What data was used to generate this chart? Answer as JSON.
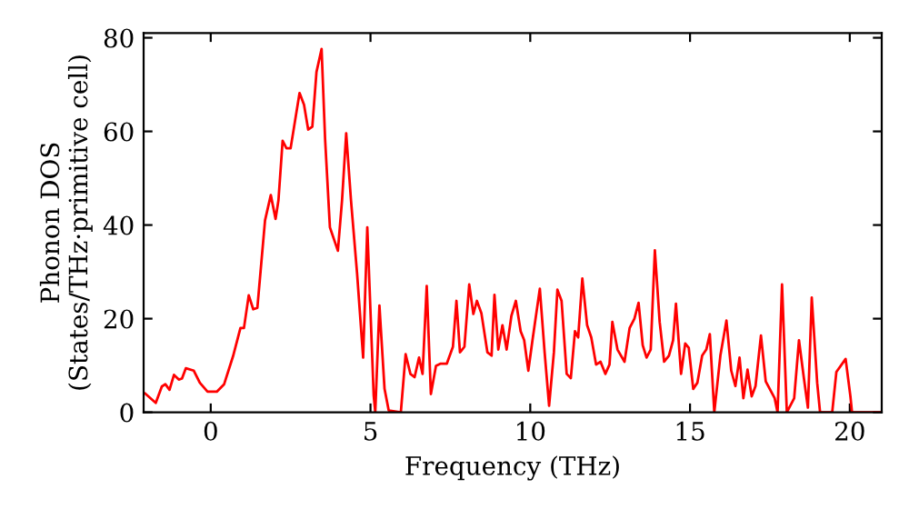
{
  "chart_data": {
    "type": "line",
    "xlabel": "Frequency (THz)",
    "ylabel": "Phonon DOS\n(States/THz·primitive cell)",
    "xlim": [
      -2.1,
      21
    ],
    "ylim": [
      0,
      81
    ],
    "xticks": [
      0,
      5,
      10,
      15,
      20
    ],
    "yticks": [
      0,
      20,
      40,
      60,
      80
    ],
    "grid": false,
    "legend": false,
    "marker": "none",
    "line_style": "solid",
    "series": [
      {
        "color": "#ff0000",
        "x": [
          -2.05,
          -1.72,
          -1.53,
          -1.42,
          -1.29,
          -1.15,
          -1.0,
          -0.9,
          -0.78,
          -0.53,
          -0.34,
          -0.1,
          0.19,
          0.42,
          0.7,
          0.93,
          1.04,
          1.19,
          1.33,
          1.46,
          1.7,
          1.88,
          2.03,
          2.12,
          2.25,
          2.37,
          2.5,
          2.78,
          2.92,
          3.05,
          3.18,
          3.31,
          3.47,
          3.58,
          3.73,
          3.98,
          4.11,
          4.24,
          4.39,
          4.58,
          4.77,
          4.9,
          5.1,
          5.15,
          5.28,
          5.44,
          5.57,
          5.95,
          6.1,
          6.25,
          6.38,
          6.52,
          6.63,
          6.76,
          6.89,
          7.05,
          7.2,
          7.39,
          7.58,
          7.69,
          7.8,
          7.94,
          8.09,
          8.22,
          8.33,
          8.47,
          8.66,
          8.79,
          8.88,
          9.0,
          9.13,
          9.26,
          9.41,
          9.55,
          9.7,
          9.81,
          9.94,
          10.07,
          10.3,
          10.45,
          10.59,
          10.74,
          10.85,
          10.98,
          11.14,
          11.27,
          11.4,
          11.5,
          11.63,
          11.78,
          11.91,
          12.06,
          12.2,
          12.35,
          12.48,
          12.57,
          12.73,
          12.95,
          13.11,
          13.26,
          13.39,
          13.52,
          13.64,
          13.77,
          13.9,
          14.05,
          14.19,
          14.34,
          14.47,
          14.56,
          14.72,
          14.85,
          14.96,
          15.1,
          15.23,
          15.38,
          15.51,
          15.62,
          15.76,
          15.95,
          16.14,
          16.29,
          16.42,
          16.55,
          16.67,
          16.8,
          16.93,
          17.05,
          17.22,
          17.37,
          17.65,
          17.74,
          17.88,
          18.03,
          18.26,
          18.41,
          18.56,
          18.69,
          18.81,
          18.98,
          19.07,
          19.45,
          19.58,
          19.87,
          20.02,
          20.07,
          21
        ],
        "values": [
          4,
          2,
          5.5,
          6,
          4.8,
          8,
          7,
          7.2,
          9.4,
          8.9,
          6.3,
          4.4,
          4.4,
          6,
          12,
          18,
          18,
          25,
          22,
          22.3,
          41,
          46.4,
          41.3,
          45.3,
          58,
          56.4,
          56.4,
          68.2,
          65.7,
          60.4,
          61,
          72.7,
          77.6,
          58.3,
          39.5,
          34.5,
          45.3,
          59.6,
          45.3,
          29.7,
          11.7,
          39.5,
          3.6,
          0,
          22.8,
          5,
          0.4,
          0,
          12.4,
          8.2,
          7.5,
          11.7,
          8.2,
          27,
          3.9,
          9.9,
          10.4,
          10.4,
          14,
          23.8,
          12.8,
          14,
          27.3,
          21,
          23.8,
          21.2,
          12.8,
          12.1,
          25.1,
          13.4,
          18.6,
          13.4,
          20.6,
          23.8,
          17.3,
          15.4,
          8.9,
          15.4,
          26.4,
          12.8,
          1.4,
          12.8,
          26.2,
          23.8,
          8.2,
          7.3,
          17.3,
          16,
          28.6,
          18.6,
          16,
          10.2,
          10.8,
          8.2,
          10.2,
          19.3,
          13.4,
          10.8,
          18,
          20,
          23.4,
          14.3,
          11.7,
          13.4,
          34.6,
          19.3,
          10.8,
          12.1,
          15.4,
          23.2,
          8.2,
          14.7,
          13.8,
          5,
          6.3,
          12.1,
          13.4,
          16.7,
          0,
          12.1,
          19.6,
          8.9,
          5.6,
          11.7,
          3,
          9.1,
          3.4,
          5.6,
          16.4,
          6.6,
          3,
          0,
          27.3,
          0,
          3,
          15.4,
          7.5,
          1,
          24.5,
          6.3,
          0,
          0,
          8.6,
          11.4,
          3.4,
          0,
          0
        ]
      }
    ]
  }
}
